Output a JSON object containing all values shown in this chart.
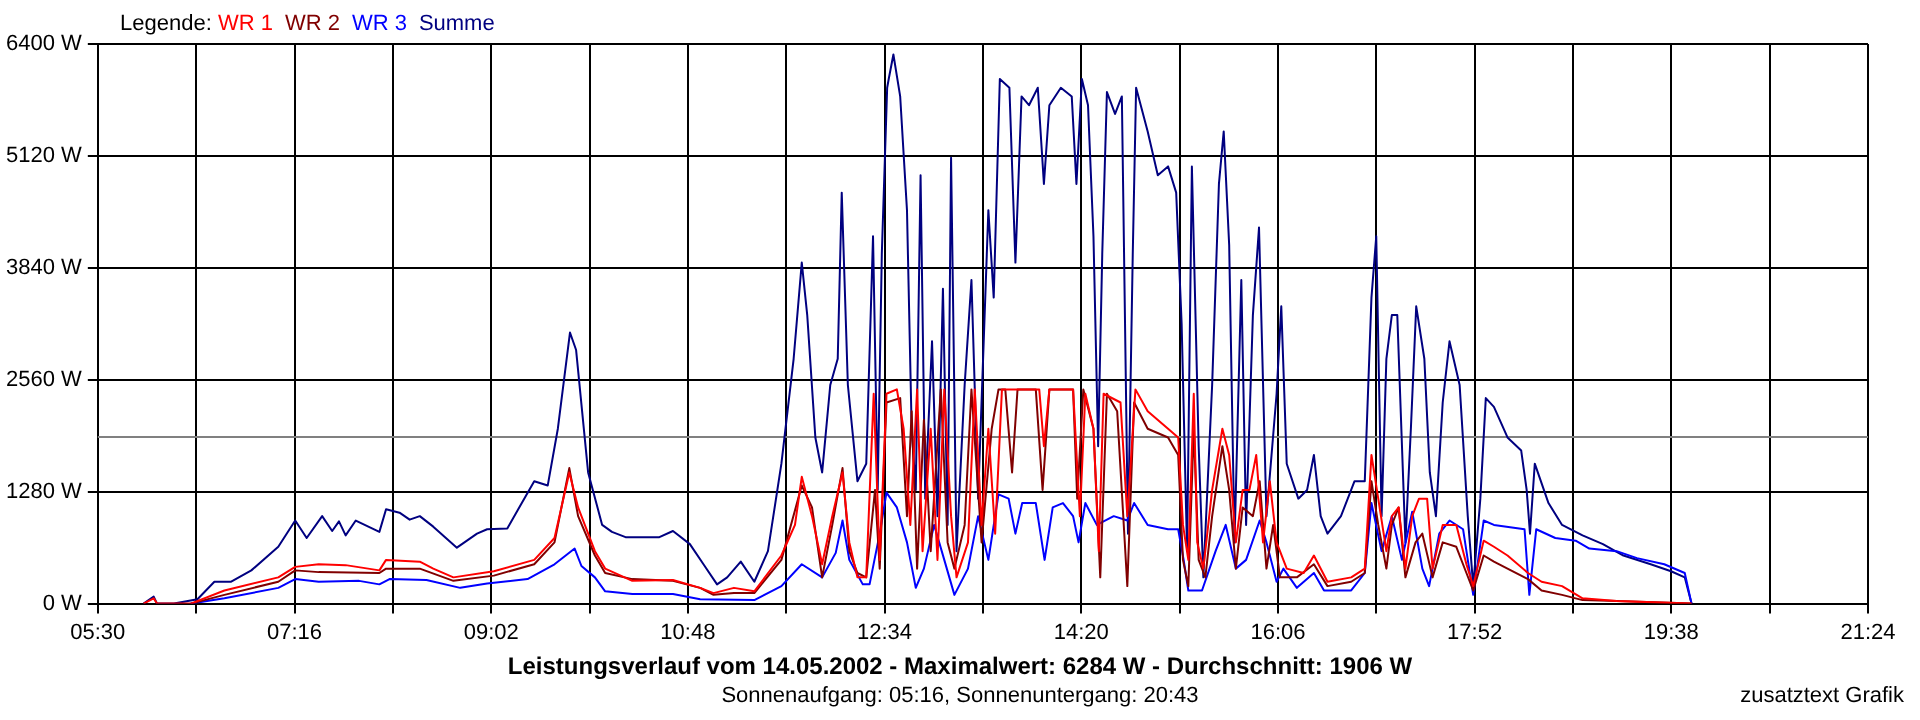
{
  "chart_data": {
    "type": "line",
    "title": "Leistungsverlauf vom 14.05.2002 - Maximalwert: 6284 W - Durchschnitt: 1906 W",
    "subtitle": "Sonnenaufgang: 05:16, Sonnenuntergang: 20:43",
    "annotations": [
      "zusatztext Grafik"
    ],
    "legend_title": "Legende:",
    "legend": "top left",
    "grid": true,
    "xlim": [
      5.5,
      21.4
    ],
    "xticks": [
      {
        "value": 5.5,
        "label": "05:30"
      },
      {
        "value": 6.3833,
        "label": null
      },
      {
        "value": 7.2667,
        "label": "07:16"
      },
      {
        "value": 8.15,
        "label": null
      },
      {
        "value": 9.0333,
        "label": "09:02"
      },
      {
        "value": 9.9167,
        "label": null
      },
      {
        "value": 10.8,
        "label": "10:48"
      },
      {
        "value": 11.6833,
        "label": null
      },
      {
        "value": 12.5667,
        "label": "12:34"
      },
      {
        "value": 13.45,
        "label": null
      },
      {
        "value": 14.3333,
        "label": "14:20"
      },
      {
        "value": 15.2167,
        "label": null
      },
      {
        "value": 16.1,
        "label": "16:06"
      },
      {
        "value": 16.9833,
        "label": null
      },
      {
        "value": 17.8667,
        "label": "17:52"
      },
      {
        "value": 18.75,
        "label": null
      },
      {
        "value": 19.6333,
        "label": "19:38"
      },
      {
        "value": 20.5167,
        "label": null
      },
      {
        "value": 21.4,
        "label": "21:24"
      }
    ],
    "ylim": [
      0,
      6400
    ],
    "yticks": [
      {
        "value": 0,
        "label": "0 W"
      },
      {
        "value": 1280,
        "label": "1280 W"
      },
      {
        "value": 2560,
        "label": "2560 W"
      },
      {
        "value": 3840,
        "label": "3840 W"
      },
      {
        "value": 5120,
        "label": "5120 W"
      },
      {
        "value": 6400,
        "label": "6400 W"
      }
    ],
    "ref_lines": [
      {
        "axis": "y",
        "value": 1906,
        "color": "#808080"
      }
    ],
    "series": [
      {
        "name": "WR 1",
        "color": "#ff0000",
        "x": [
          5.911,
          6.002,
          6.032,
          6.335,
          6.637,
          7.121,
          7.273,
          7.484,
          7.726,
          8.029,
          8.089,
          8.392,
          8.513,
          8.694,
          9.057,
          9.42,
          9.602,
          9.735,
          9.814,
          9.965,
          10.057,
          10.301,
          10.666,
          10.91,
          11.03,
          11.214,
          11.397,
          11.64,
          11.762,
          11.823,
          11.915,
          12.006,
          12.097,
          12.189,
          12.25,
          12.323,
          12.402,
          12.469,
          12.523,
          12.584,
          12.677,
          12.738,
          12.798,
          12.859,
          12.908,
          12.981,
          13.042,
          13.103,
          13.164,
          13.213,
          13.316,
          13.377,
          13.438,
          13.499,
          13.56,
          13.621,
          13.956,
          13.998,
          14.047,
          14.26,
          14.321,
          14.37,
          14.443,
          14.491,
          14.534,
          14.686,
          14.747,
          14.82,
          14.93,
          15.113,
          15.204,
          15.247,
          15.295,
          15.344,
          15.375,
          15.43,
          15.509,
          15.601,
          15.662,
          15.722,
          15.783,
          15.844,
          15.905,
          15.966,
          16.027,
          16.088,
          16.179,
          16.331,
          16.423,
          16.545,
          16.758,
          16.88,
          16.94,
          17.001,
          17.074,
          17.123,
          17.184,
          17.245,
          17.306,
          17.367,
          17.44,
          17.489,
          17.58,
          17.702,
          17.793,
          17.854,
          17.948,
          18.04,
          18.162,
          18.346,
          18.468,
          18.652,
          18.836,
          19.142,
          19.815
        ],
        "values": [
          0,
          60,
          0,
          0,
          150,
          300,
          420,
          450,
          440,
          380,
          500,
          480,
          400,
          300,
          370,
          500,
          750,
          1500,
          1100,
          600,
          400,
          260,
          270,
          180,
          120,
          180,
          140,
          550,
          900,
          1450,
          1000,
          450,
          1000,
          1500,
          700,
          300,
          300,
          2400,
          500,
          2400,
          2450,
          2000,
          900,
          2450,
          600,
          2000,
          500,
          2450,
          1000,
          300,
          700,
          2450,
          900,
          2000,
          800,
          2450,
          2450,
          1800,
          2450,
          2450,
          1000,
          2400,
          2000,
          600,
          2400,
          2300,
          1000,
          2450,
          2200,
          2000,
          1900,
          900,
          500,
          2400,
          700,
          400,
          1300,
          2000,
          1700,
          700,
          1300,
          1300,
          1700,
          700,
          1400,
          700,
          400,
          350,
          550,
          250,
          300,
          400,
          1700,
          1200,
          600,
          1000,
          1100,
          400,
          1000,
          1200,
          1200,
          400,
          900,
          900,
          450,
          200,
          720,
          650,
          550,
          350,
          250,
          200,
          60,
          30,
          0
        ]
      },
      {
        "name": "WR 2",
        "color": "#800000",
        "x": [
          6.335,
          6.637,
          7.121,
          7.273,
          7.484,
          8.029,
          8.089,
          8.392,
          8.694,
          9.057,
          9.42,
          9.602,
          9.735,
          9.814,
          9.965,
          10.057,
          10.301,
          10.666,
          10.91,
          11.03,
          11.214,
          11.397,
          11.64,
          11.823,
          11.915,
          12.006,
          12.097,
          12.189,
          12.25,
          12.323,
          12.402,
          12.481,
          12.523,
          12.584,
          12.707,
          12.768,
          12.81,
          12.859,
          12.92,
          12.981,
          13.072,
          13.133,
          13.194,
          13.286,
          13.347,
          13.438,
          13.529,
          13.59,
          13.651,
          13.712,
          13.761,
          13.925,
          13.986,
          14.047,
          14.26,
          14.297,
          14.352,
          14.443,
          14.504,
          14.564,
          14.656,
          14.747,
          14.808,
          14.93,
          15.113,
          15.204,
          15.247,
          15.295,
          15.344,
          15.388,
          15.448,
          15.509,
          15.601,
          15.662,
          15.722,
          15.783,
          15.875,
          15.936,
          15.997,
          16.057,
          16.118,
          16.27,
          16.423,
          16.545,
          16.758,
          16.88,
          16.94,
          17.001,
          17.074,
          17.123,
          17.184,
          17.245,
          17.336,
          17.397,
          17.489,
          17.58,
          17.702,
          17.793,
          17.854,
          17.948,
          18.04,
          18.162,
          18.346,
          18.468,
          18.652,
          18.836,
          19.142,
          19.815
        ],
        "values": [
          0,
          100,
          250,
          380,
          360,
          350,
          400,
          400,
          260,
          320,
          450,
          700,
          1550,
          1000,
          550,
          350,
          280,
          260,
          180,
          100,
          120,
          120,
          500,
          1350,
          1100,
          300,
          900,
          1550,
          600,
          350,
          300,
          1300,
          400,
          2300,
          2350,
          1000,
          2200,
          400,
          2100,
          600,
          2450,
          700,
          400,
          900,
          2450,
          700,
          2000,
          2450,
          2450,
          1500,
          2450,
          2450,
          1300,
          2450,
          2450,
          1200,
          2450,
          2000,
          300,
          2400,
          2200,
          200,
          2300,
          2000,
          1900,
          1700,
          500,
          200,
          2000,
          500,
          300,
          1000,
          1800,
          1300,
          400,
          1100,
          1000,
          1400,
          400,
          900,
          300,
          300,
          450,
          200,
          250,
          350,
          1400,
          900,
          400,
          900,
          1100,
          300,
          700,
          800,
          300,
          700,
          650,
          350,
          150,
          550,
          480,
          400,
          280,
          150,
          100,
          40,
          30,
          0
        ]
      },
      {
        "name": "WR 3",
        "color": "#0000ff",
        "x": [
          6.335,
          6.637,
          7.121,
          7.273,
          7.484,
          7.847,
          8.029,
          8.12,
          8.452,
          8.755,
          8.997,
          9.36,
          9.602,
          9.783,
          9.844,
          9.965,
          10.057,
          10.301,
          10.666,
          10.91,
          11.397,
          11.64,
          11.823,
          12.006,
          12.128,
          12.189,
          12.25,
          12.371,
          12.432,
          12.523,
          12.584,
          12.677,
          12.768,
          12.847,
          12.92,
          13.012,
          13.103,
          13.194,
          13.316,
          13.407,
          13.499,
          13.59,
          13.681,
          13.742,
          13.803,
          13.925,
          14.004,
          14.077,
          14.169,
          14.26,
          14.309,
          14.37,
          14.473,
          14.625,
          14.747,
          14.808,
          14.93,
          15.113,
          15.204,
          15.253,
          15.295,
          15.418,
          15.54,
          15.631,
          15.722,
          15.814,
          15.936,
          15.997,
          16.088,
          16.149,
          16.27,
          16.423,
          16.514,
          16.758,
          16.88,
          16.94,
          17.031,
          17.123,
          17.214,
          17.306,
          17.397,
          17.458,
          17.549,
          17.641,
          17.763,
          17.854,
          17.948,
          18.04,
          18.315,
          18.358,
          18.42,
          18.591,
          18.774,
          18.897,
          19.142,
          19.325,
          19.57,
          19.754,
          19.815
        ],
        "values": [
          0,
          60,
          180,
          280,
          250,
          260,
          220,
          280,
          270,
          180,
          230,
          280,
          450,
          630,
          430,
          300,
          140,
          110,
          110,
          50,
          40,
          200,
          450,
          300,
          580,
          950,
          500,
          220,
          220,
          800,
          1270,
          1100,
          700,
          180,
          400,
          900,
          500,
          100,
          400,
          1000,
          500,
          1250,
          1200,
          800,
          1150,
          1150,
          500,
          1100,
          1150,
          1000,
          700,
          1150,
          900,
          1000,
          950,
          1150,
          900,
          850,
          850,
          500,
          150,
          150,
          600,
          900,
          400,
          500,
          950,
          700,
          250,
          400,
          180,
          350,
          150,
          150,
          350,
          1150,
          600,
          1000,
          500,
          1050,
          400,
          200,
          800,
          950,
          850,
          100,
          950,
          900,
          850,
          100,
          850,
          750,
          720,
          630,
          600,
          520,
          450,
          350,
          0
        ]
      },
      {
        "name": "Summe",
        "color": "#000080",
        "x": [
          5.911,
          6.002,
          6.032,
          6.184,
          6.395,
          6.547,
          6.698,
          6.879,
          7.121,
          7.273,
          7.376,
          7.515,
          7.605,
          7.666,
          7.726,
          7.817,
          8.029,
          8.089,
          8.21,
          8.301,
          8.392,
          8.513,
          8.725,
          8.906,
          8.997,
          9.178,
          9.42,
          9.541,
          9.632,
          9.741,
          9.796,
          9.904,
          10.03,
          10.118,
          10.24,
          10.422,
          10.544,
          10.666,
          10.818,
          10.94,
          11.062,
          11.153,
          11.275,
          11.397,
          11.519,
          11.64,
          11.75,
          11.823,
          11.872,
          11.945,
          12.006,
          12.079,
          12.146,
          12.182,
          12.237,
          12.323,
          12.402,
          12.463,
          12.505,
          12.542,
          12.59,
          12.604,
          12.646,
          12.707,
          12.768,
          12.81,
          12.847,
          12.89,
          12.932,
          12.993,
          13.042,
          13.091,
          13.133,
          13.164,
          13.213,
          13.286,
          13.347,
          13.407,
          13.499,
          13.547,
          13.602,
          13.688,
          13.742,
          13.797,
          13.864,
          13.943,
          13.998,
          14.047,
          14.15,
          14.248,
          14.29,
          14.339,
          14.394,
          14.443,
          14.485,
          14.522,
          14.564,
          14.637,
          14.698,
          14.753,
          14.796,
          14.826,
          14.93,
          15.021,
          15.113,
          15.186,
          15.235,
          15.284,
          15.327,
          15.388,
          15.43,
          15.509,
          15.57,
          15.613,
          15.662,
          15.71,
          15.771,
          15.814,
          15.875,
          15.93,
          15.997,
          16.088,
          16.13,
          16.179,
          16.283,
          16.362,
          16.423,
          16.484,
          16.545,
          16.666,
          16.788,
          16.88,
          16.94,
          16.983,
          17.031,
          17.074,
          17.123,
          17.172,
          17.245,
          17.294,
          17.342,
          17.415,
          17.464,
          17.519,
          17.58,
          17.641,
          17.732,
          17.805,
          17.854,
          17.918,
          17.967,
          18.04,
          18.162,
          18.285,
          18.334,
          18.364,
          18.407,
          18.53,
          18.652,
          18.836,
          19.019,
          19.203,
          19.448,
          19.631,
          19.754,
          19.815
        ],
        "values": [
          0,
          80,
          0,
          0,
          50,
          250,
          250,
          380,
          650,
          950,
          750,
          1000,
          830,
          940,
          780,
          950,
          820,
          1080,
          1040,
          960,
          1000,
          880,
          640,
          800,
          850,
          860,
          1400,
          1350,
          2000,
          3100,
          2900,
          1500,
          900,
          820,
          760,
          760,
          760,
          830,
          680,
          450,
          220,
          300,
          480,
          250,
          600,
          1600,
          2800,
          3900,
          3300,
          1900,
          1500,
          2500,
          2800,
          4700,
          2500,
          1400,
          1600,
          4200,
          1300,
          4000,
          5900,
          6000,
          6280,
          5800,
          4500,
          2000,
          1300,
          4900,
          1200,
          3000,
          1000,
          3600,
          900,
          5100,
          600,
          2500,
          3700,
          1200,
          4500,
          3500,
          6000,
          5900,
          3900,
          5800,
          5700,
          5900,
          4800,
          5700,
          5900,
          5800,
          4800,
          6000,
          5700,
          4200,
          1800,
          4000,
          5850,
          5600,
          5800,
          800,
          4000,
          5900,
          5400,
          4900,
          5000,
          4700,
          3200,
          600,
          5000,
          1800,
          300,
          2500,
          4800,
          5400,
          4100,
          700,
          3700,
          900,
          3300,
          4300,
          1000,
          2400,
          3400,
          1600,
          1200,
          1300,
          1700,
          1000,
          800,
          1000,
          1400,
          1400,
          3500,
          4200,
          1000,
          2800,
          3300,
          3300,
          700,
          2000,
          3400,
          2800,
          1500,
          1000,
          2300,
          3000,
          2500,
          1000,
          200,
          1200,
          2350,
          2250,
          1900,
          1750,
          1300,
          800,
          1600,
          1150,
          900,
          780,
          680,
          550,
          450,
          370,
          300,
          0
        ]
      }
    ]
  }
}
